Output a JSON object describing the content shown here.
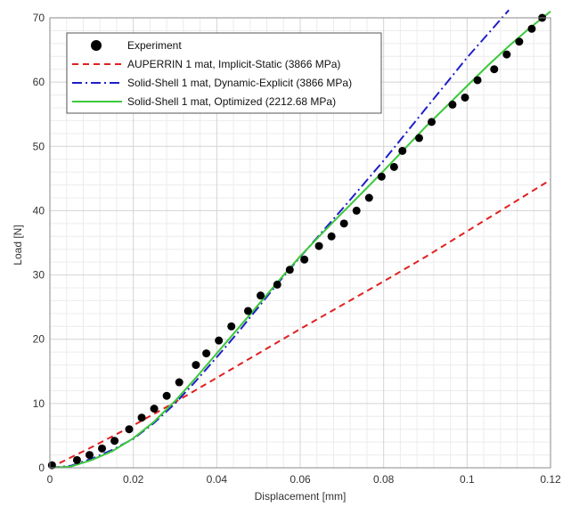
{
  "chart_data": {
    "type": "line",
    "title": "",
    "xlabel": "Displacement [mm]",
    "ylabel": "Load [N]",
    "xlim": [
      0,
      0.12
    ],
    "ylim": [
      0,
      70
    ],
    "xticks": [
      "0",
      "0.02",
      "0.04",
      "0.06",
      "0.08",
      "0.1",
      "0.12"
    ],
    "yticks": [
      "0",
      "10",
      "20",
      "30",
      "40",
      "50",
      "60",
      "70"
    ],
    "xtick_values": [
      0,
      0.02,
      0.04,
      0.06,
      0.08,
      0.1,
      0.12
    ],
    "ytick_values": [
      0,
      10,
      20,
      30,
      40,
      50,
      60,
      70
    ],
    "grid": true,
    "legend_position": "top-left",
    "series": [
      {
        "name": "Experiment",
        "style": "markers",
        "color": "#000000",
        "points": [
          [
            0.0005,
            0.4
          ],
          [
            0.0065,
            1.2
          ],
          [
            0.0095,
            2.0
          ],
          [
            0.0125,
            3.0
          ],
          [
            0.0155,
            4.2
          ],
          [
            0.019,
            6.0
          ],
          [
            0.022,
            7.8
          ],
          [
            0.025,
            9.2
          ],
          [
            0.028,
            11.2
          ],
          [
            0.031,
            13.3
          ],
          [
            0.035,
            16.0
          ],
          [
            0.0375,
            17.8
          ],
          [
            0.0405,
            19.8
          ],
          [
            0.0435,
            22.0
          ],
          [
            0.0475,
            24.4
          ],
          [
            0.0505,
            26.8
          ],
          [
            0.0545,
            28.5
          ],
          [
            0.0575,
            30.8
          ],
          [
            0.061,
            32.4
          ],
          [
            0.0645,
            34.5
          ],
          [
            0.0675,
            36.0
          ],
          [
            0.0705,
            38.0
          ],
          [
            0.0735,
            40.0
          ],
          [
            0.0765,
            42.0
          ],
          [
            0.0795,
            45.3
          ],
          [
            0.0825,
            46.8
          ],
          [
            0.0845,
            49.3
          ],
          [
            0.0885,
            51.3
          ],
          [
            0.0915,
            53.8
          ],
          [
            0.0965,
            56.5
          ],
          [
            0.0995,
            57.6
          ],
          [
            0.1025,
            60.3
          ],
          [
            0.1065,
            62.0
          ],
          [
            0.1095,
            64.3
          ],
          [
            0.1125,
            66.3
          ],
          [
            0.1155,
            68.3
          ],
          [
            0.118,
            70.0
          ]
        ]
      },
      {
        "name": "AUPERRIN 1 mat, Implicit-Static (3866 MPa)",
        "style": "dashed",
        "color": "#e02020",
        "points": [
          [
            0,
            0
          ],
          [
            0.01,
            3.2
          ],
          [
            0.02,
            6.6
          ],
          [
            0.03,
            10.2
          ],
          [
            0.04,
            14.0
          ],
          [
            0.05,
            17.8
          ],
          [
            0.06,
            21.6
          ],
          [
            0.07,
            25.3
          ],
          [
            0.08,
            29.0
          ],
          [
            0.09,
            32.8
          ],
          [
            0.1,
            36.8
          ],
          [
            0.11,
            40.8
          ],
          [
            0.12,
            44.8
          ]
        ]
      },
      {
        "name": "Solid-Shell 1 mat, Dynamic-Explicit  (3866 MPa)",
        "style": "dashdot",
        "color": "#1f1fc8",
        "points": [
          [
            0,
            0
          ],
          [
            0.005,
            0.3
          ],
          [
            0.01,
            1.4
          ],
          [
            0.015,
            2.8
          ],
          [
            0.02,
            4.5
          ],
          [
            0.025,
            7.0
          ],
          [
            0.03,
            10.0
          ],
          [
            0.035,
            13.5
          ],
          [
            0.04,
            17.2
          ],
          [
            0.045,
            21.0
          ],
          [
            0.05,
            25.0
          ],
          [
            0.055,
            29.0
          ],
          [
            0.06,
            32.8
          ],
          [
            0.065,
            36.5
          ],
          [
            0.07,
            40.2
          ],
          [
            0.075,
            44.0
          ],
          [
            0.08,
            47.8
          ],
          [
            0.085,
            51.8
          ],
          [
            0.09,
            55.8
          ],
          [
            0.095,
            59.8
          ],
          [
            0.1,
            63.8
          ],
          [
            0.105,
            67.5
          ],
          [
            0.11,
            71.2
          ]
        ]
      },
      {
        "name": "Solid-Shell 1 mat, Optimized (2212.68 MPa)",
        "style": "solid",
        "color": "#3cc83c",
        "points": [
          [
            0,
            0
          ],
          [
            0.005,
            0.2
          ],
          [
            0.01,
            1.2
          ],
          [
            0.015,
            2.6
          ],
          [
            0.02,
            4.6
          ],
          [
            0.025,
            7.2
          ],
          [
            0.03,
            10.4
          ],
          [
            0.035,
            14.0
          ],
          [
            0.04,
            17.8
          ],
          [
            0.045,
            21.6
          ],
          [
            0.05,
            25.4
          ],
          [
            0.055,
            29.2
          ],
          [
            0.06,
            32.9
          ],
          [
            0.065,
            36.3
          ],
          [
            0.07,
            39.6
          ],
          [
            0.075,
            42.9
          ],
          [
            0.08,
            46.2
          ],
          [
            0.085,
            49.6
          ],
          [
            0.09,
            53.0
          ],
          [
            0.095,
            56.2
          ],
          [
            0.1,
            59.4
          ],
          [
            0.105,
            62.6
          ],
          [
            0.11,
            65.6
          ],
          [
            0.115,
            68.4
          ],
          [
            0.12,
            71.0
          ]
        ]
      }
    ]
  }
}
